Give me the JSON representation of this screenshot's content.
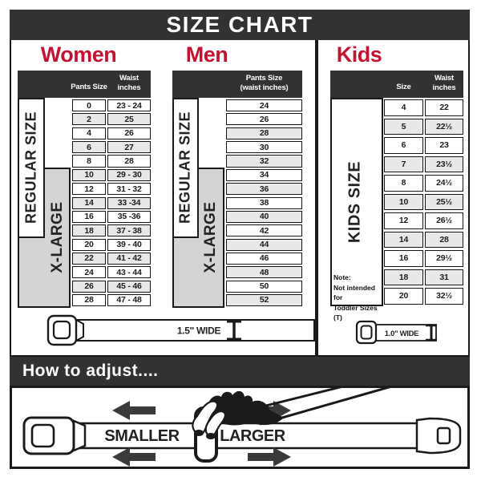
{
  "title": "SIZE CHART",
  "colors": {
    "accent": "#c21333",
    "dark_bar": "#323232",
    "row_alt": "#e8e8e8",
    "label_gray": "#d4d4d4",
    "border": "#1a1a1a"
  },
  "sections": {
    "women": {
      "heading": "Women",
      "col1_header": "Pants Size",
      "col2_header_line1": "Waist",
      "col2_header_line2": "inches",
      "regular_label": "REGULAR SIZE",
      "xlarge_label": "X-LARGE",
      "rows": [
        {
          "size": "0",
          "waist": "23 - 24",
          "shaded": false
        },
        {
          "size": "2",
          "waist": "25",
          "shaded": true
        },
        {
          "size": "4",
          "waist": "26",
          "shaded": false
        },
        {
          "size": "6",
          "waist": "27",
          "shaded": true
        },
        {
          "size": "8",
          "waist": "28",
          "shaded": false
        },
        {
          "size": "10",
          "waist": "29 - 30",
          "shaded": true
        },
        {
          "size": "12",
          "waist": "31 - 32",
          "shaded": false
        },
        {
          "size": "14",
          "waist": "33 -34",
          "shaded": true
        },
        {
          "size": "16",
          "waist": "35 -36",
          "shaded": false
        },
        {
          "size": "18",
          "waist": "37 - 38",
          "shaded": true
        },
        {
          "size": "20",
          "waist": "39 - 40",
          "shaded": false
        },
        {
          "size": "22",
          "waist": "41 - 42",
          "shaded": true
        },
        {
          "size": "24",
          "waist": "43 - 44",
          "shaded": false
        },
        {
          "size": "26",
          "waist": "45 - 46",
          "shaded": true
        },
        {
          "size": "28",
          "waist": "47 - 48",
          "shaded": false
        }
      ]
    },
    "men": {
      "heading": "Men",
      "col_header_line1": "Pants Size",
      "col_header_line2": "(waist inches)",
      "regular_label": "REGULAR SIZE",
      "xlarge_label": "X-LARGE",
      "rows": [
        {
          "value": "24",
          "shaded": false
        },
        {
          "value": "26",
          "shaded": false
        },
        {
          "value": "28",
          "shaded": true
        },
        {
          "value": "30",
          "shaded": false
        },
        {
          "value": "32",
          "shaded": true
        },
        {
          "value": "34",
          "shaded": false
        },
        {
          "value": "36",
          "shaded": true
        },
        {
          "value": "38",
          "shaded": false
        },
        {
          "value": "40",
          "shaded": true
        },
        {
          "value": "42",
          "shaded": false
        },
        {
          "value": "44",
          "shaded": true
        },
        {
          "value": "46",
          "shaded": false
        },
        {
          "value": "48",
          "shaded": true
        },
        {
          "value": "50",
          "shaded": false
        },
        {
          "value": "52",
          "shaded": true
        }
      ]
    },
    "kids": {
      "heading": "Kids",
      "col1_header": "Size",
      "col2_header_line1": "Waist",
      "col2_header_line2": "inches",
      "kids_label": "KIDS SIZE",
      "note_line1": "Note:",
      "note_line2": "Not intended for",
      "note_line3": "Toddler Sizes (T)",
      "rows": [
        {
          "size": "4",
          "waist": "22",
          "shaded": false
        },
        {
          "size": "5",
          "waist": "22½",
          "shaded": true
        },
        {
          "size": "6",
          "waist": "23",
          "shaded": false
        },
        {
          "size": "7",
          "waist": "23½",
          "shaded": true
        },
        {
          "size": "8",
          "waist": "24½",
          "shaded": false
        },
        {
          "size": "10",
          "waist": "25½",
          "shaded": true
        },
        {
          "size": "12",
          "waist": "26½",
          "shaded": false
        },
        {
          "size": "14",
          "waist": "28",
          "shaded": true
        },
        {
          "size": "16",
          "waist": "29½",
          "shaded": false
        },
        {
          "size": "18",
          "waist": "31",
          "shaded": true
        },
        {
          "size": "20",
          "waist": "32½",
          "shaded": false
        }
      ]
    }
  },
  "belts": {
    "adult_width_label": "1.5\" WIDE",
    "kids_width_label": "1.0\" WIDE"
  },
  "how_to_adjust": {
    "heading": "How to adjust....",
    "smaller_label": "SMALLER",
    "larger_label": "LARGER"
  }
}
